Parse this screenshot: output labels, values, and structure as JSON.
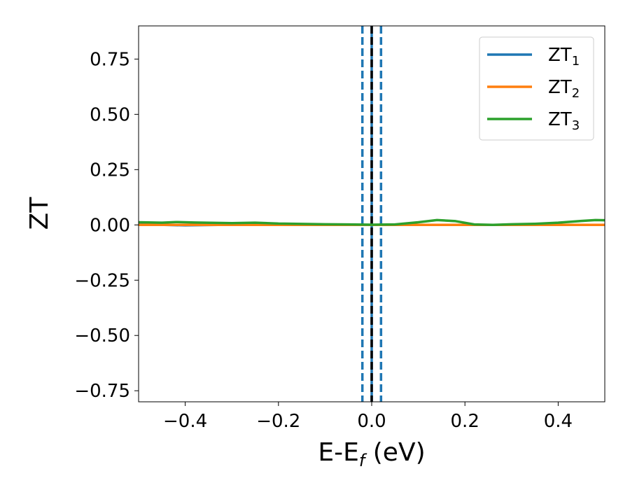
{
  "chart_data": {
    "type": "line",
    "xlabel": {
      "base": "E-E",
      "sub": "f",
      "unit": " (eV)"
    },
    "ylabel": "ZT",
    "xlim": [
      -0.5,
      0.5
    ],
    "ylim": [
      -0.8,
      0.9
    ],
    "x_ticks": [
      -0.4,
      -0.2,
      0.0,
      0.2,
      0.4
    ],
    "x_tick_labels": [
      "−0.4",
      "−0.2",
      "0.0",
      "0.2",
      "0.4"
    ],
    "y_ticks": [
      0.75,
      0.5,
      0.25,
      0.0,
      -0.25,
      -0.5,
      -0.75
    ],
    "y_tick_labels": [
      "0.75",
      "0.50",
      "0.25",
      "0.00",
      "−0.25",
      "−0.50",
      "−0.75"
    ],
    "grid": false,
    "legend": "top-right",
    "vertical_lines": [
      {
        "x": 0.0,
        "style": "solid",
        "color": "#1f77b4"
      },
      {
        "x": -0.02,
        "style": "dashed",
        "color": "#1f77b4"
      },
      {
        "x": 0.02,
        "style": "dashed",
        "color": "#1f77b4"
      },
      {
        "x": 0.0,
        "style": "dashed",
        "color": "#000000"
      }
    ],
    "series": [
      {
        "name": "ZT",
        "sub": "1",
        "color": "#1f77b4",
        "x": [
          -0.5,
          -0.4,
          -0.3,
          -0.2,
          -0.1,
          0.0,
          0.1,
          0.2,
          0.3,
          0.4,
          0.5
        ],
        "y": [
          0.003,
          -0.002,
          0.001,
          0.0,
          0.0,
          0.0,
          0.0,
          0.0,
          0.0,
          0.0,
          0.0
        ]
      },
      {
        "name": "ZT",
        "sub": "2",
        "color": "#ff7f0e",
        "x": [
          -0.5,
          -0.4,
          -0.3,
          -0.2,
          -0.1,
          0.0,
          0.1,
          0.2,
          0.3,
          0.4,
          0.5
        ],
        "y": [
          0.0,
          0.0,
          0.0,
          0.0,
          0.0,
          0.0,
          0.0,
          0.0,
          0.0,
          0.0,
          0.0
        ]
      },
      {
        "name": "ZT",
        "sub": "3",
        "color": "#2ca02c",
        "x": [
          -0.5,
          -0.45,
          -0.42,
          -0.38,
          -0.3,
          -0.25,
          -0.2,
          -0.1,
          -0.05,
          0.0,
          0.05,
          0.1,
          0.14,
          0.18,
          0.22,
          0.26,
          0.3,
          0.35,
          0.4,
          0.45,
          0.48,
          0.5
        ],
        "y": [
          0.012,
          0.01,
          0.013,
          0.011,
          0.008,
          0.01,
          0.006,
          0.003,
          0.002,
          0.001,
          0.002,
          0.012,
          0.022,
          0.017,
          0.002,
          0.0,
          0.003,
          0.005,
          0.01,
          0.018,
          0.022,
          0.021
        ]
      }
    ]
  }
}
